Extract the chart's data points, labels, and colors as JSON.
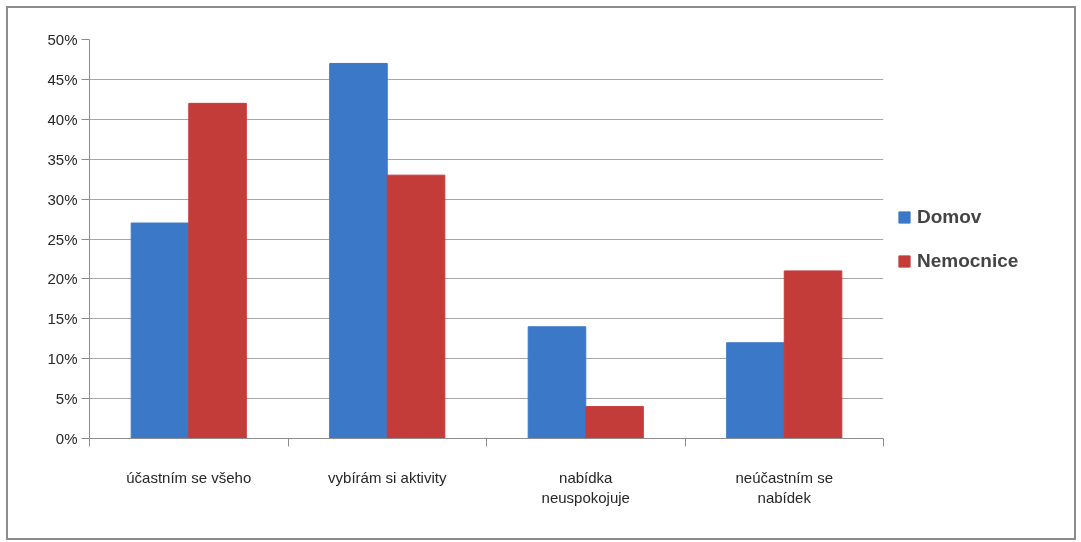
{
  "chart_data": {
    "type": "bar",
    "categories": [
      "účastním se všeho",
      "vybírám si aktivity",
      "nabídka neuspokojuje",
      "neúčastním se nabídek"
    ],
    "series": [
      {
        "name": "Domov",
        "color": "#3b78c8",
        "values": [
          27,
          47,
          14,
          12
        ]
      },
      {
        "name": "Nemocnice",
        "color": "#c43c3a",
        "values": [
          42,
          33,
          4,
          21
        ]
      }
    ],
    "ylim": [
      0,
      50
    ],
    "yticks": [
      {
        "value": 0,
        "label": "0%"
      },
      {
        "value": 5,
        "label": "5%"
      },
      {
        "value": 10,
        "label": "10%"
      },
      {
        "value": 15,
        "label": "15%"
      },
      {
        "value": 20,
        "label": "20%"
      },
      {
        "value": 25,
        "label": "25%"
      },
      {
        "value": 30,
        "label": "30%"
      },
      {
        "value": 35,
        "label": "35%"
      },
      {
        "value": 40,
        "label": "40%"
      },
      {
        "value": 45,
        "label": "45%"
      },
      {
        "value": 50,
        "label": "50%"
      }
    ],
    "grid": "y",
    "legend": "right"
  }
}
